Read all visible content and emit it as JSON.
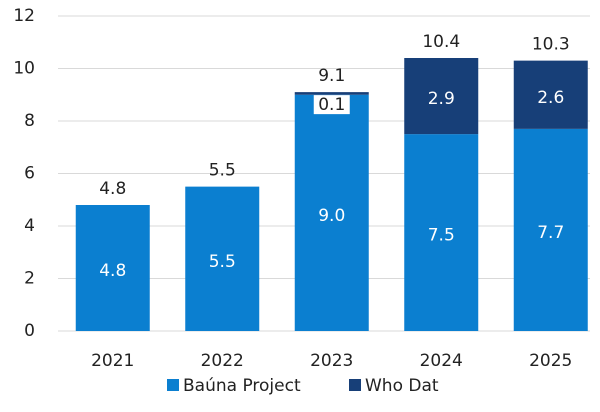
{
  "chart_data": {
    "type": "stacked_bar",
    "categories": [
      "2021",
      "2022",
      "2023",
      "2024",
      "2025"
    ],
    "series": [
      {
        "name": "Baúna Project",
        "color": "#0b7fd0",
        "values": [
          4.8,
          5.5,
          9.0,
          7.5,
          7.7
        ],
        "value_labels": [
          "4.8",
          "5.5",
          "9.0",
          "7.5",
          "7.7"
        ]
      },
      {
        "name": "Who Dat",
        "color": "#173f78",
        "values": [
          null,
          null,
          0.1,
          2.9,
          2.6
        ]
      }
    ],
    "totals": [
      4.8,
      5.5,
      9.1,
      10.4,
      10.3
    ],
    "ylim": [
      0,
      12
    ],
    "yticks": [
      0,
      2,
      4,
      6,
      8,
      10,
      12
    ],
    "grid": true,
    "legend": "bottom"
  }
}
